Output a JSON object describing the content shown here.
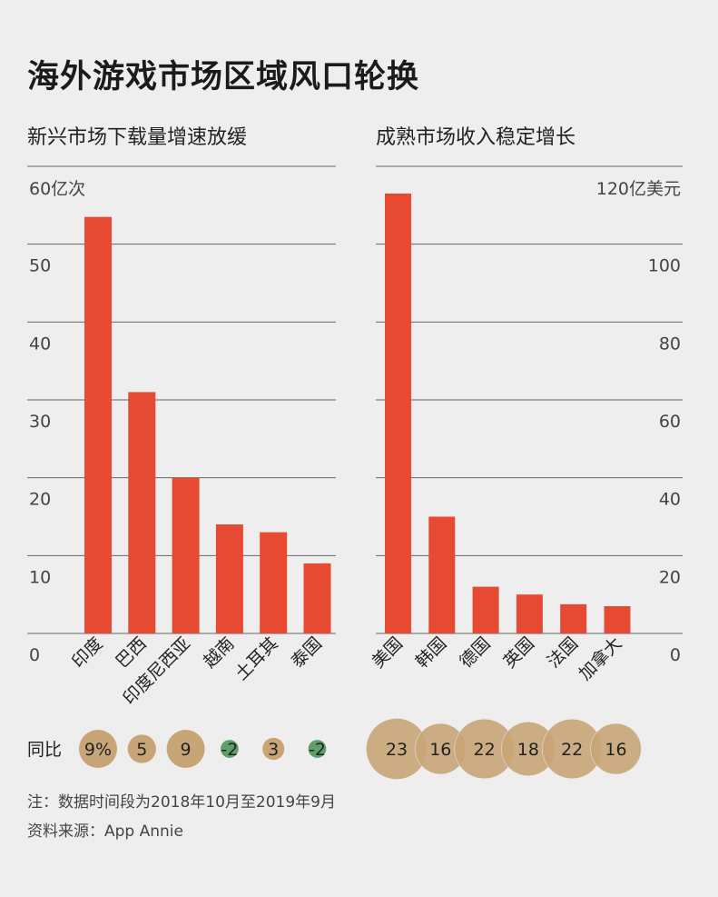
{
  "title": "海外游戏市场区域风口轮换",
  "yoy_label": "同比",
  "notes": {
    "note1": "注：数据时间段为2018年10月至2019年9月",
    "note2": "资料来源：App Annie"
  },
  "colors": {
    "bar": "#e64a32",
    "bubble": "#c8a577",
    "bubble_negative": "#5fa06a",
    "grid": "#666666",
    "background": "#eeeeee"
  },
  "chart_data": [
    {
      "type": "bar",
      "title": "新兴市场下载量增速放缓",
      "unit_label": "60亿次",
      "categories": [
        "印度",
        "巴西",
        "印度尼西亚",
        "越南",
        "土耳其",
        "泰国"
      ],
      "values": [
        53.5,
        31,
        20,
        14,
        13,
        9
      ],
      "ylim": [
        0,
        60
      ],
      "yticks": [
        "0",
        "10",
        "20",
        "30",
        "40",
        "50"
      ],
      "axis_side": "left",
      "grid": true,
      "yoy": [
        "9%",
        "5",
        "9",
        "-2",
        "3",
        "-2"
      ],
      "yoy_values": [
        9,
        5,
        9,
        -2,
        3,
        -2
      ]
    },
    {
      "type": "bar",
      "title": "成熟市场收入稳定增长",
      "unit_label": "120亿美元",
      "categories": [
        "美国",
        "韩国",
        "德国",
        "英国",
        "法国",
        "加拿大"
      ],
      "values": [
        113,
        30,
        12,
        10,
        7.5,
        7
      ],
      "ylim": [
        0,
        120
      ],
      "yticks": [
        "0",
        "20",
        "40",
        "60",
        "80",
        "100"
      ],
      "axis_side": "right",
      "grid": true,
      "yoy": [
        "23",
        "16",
        "22",
        "18",
        "22",
        "16"
      ],
      "yoy_values": [
        23,
        16,
        22,
        18,
        22,
        16
      ]
    }
  ]
}
